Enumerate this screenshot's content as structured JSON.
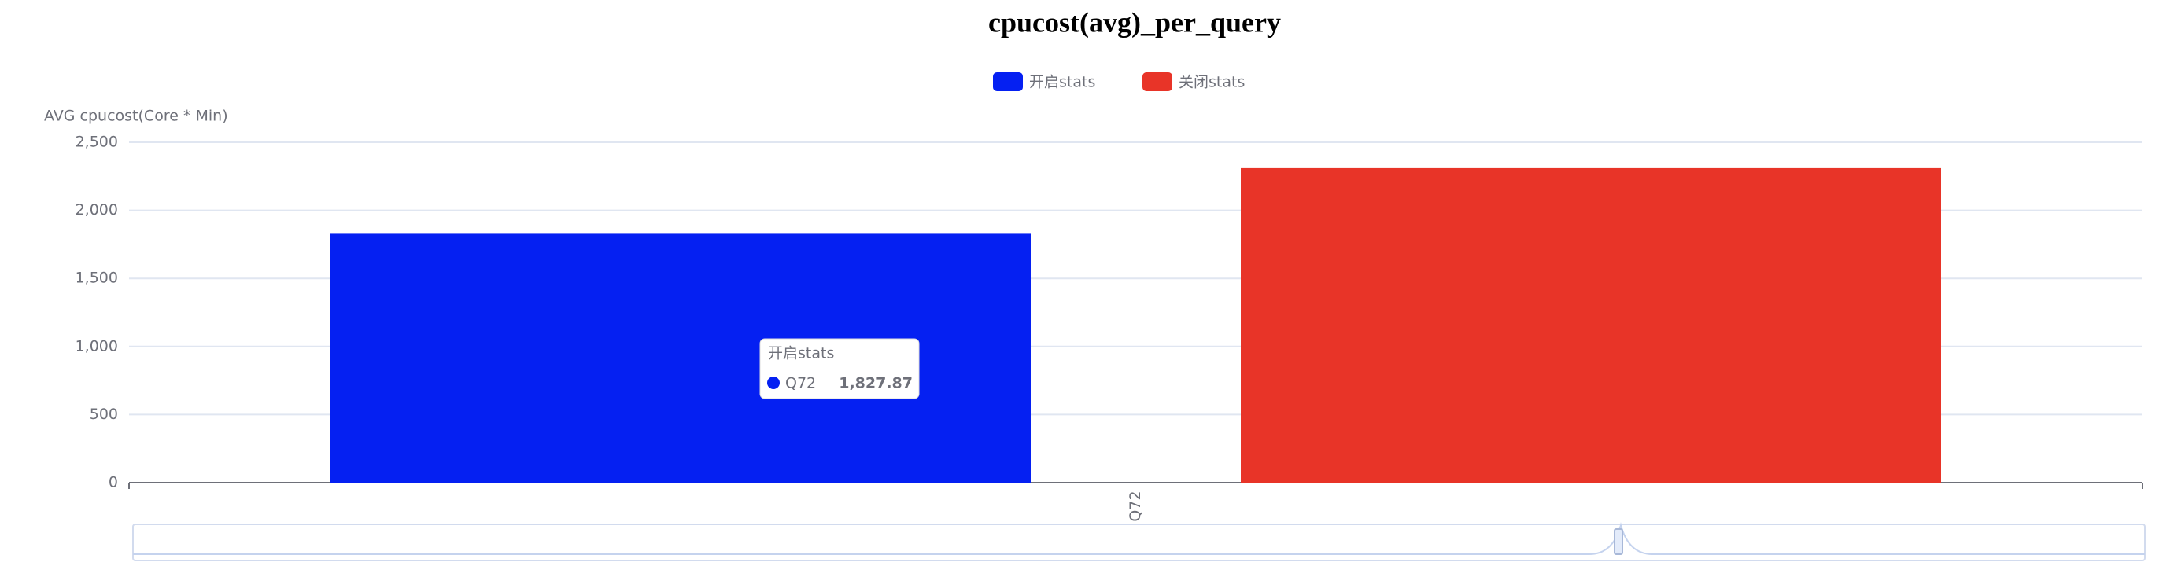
{
  "chart_data": {
    "type": "bar",
    "title": "cpucost(avg)_per_query",
    "y_label": "AVG cpucost(Core * Min)",
    "categories": [
      "Q72"
    ],
    "series": [
      {
        "name": "开启stats",
        "color": "#0520f2",
        "values": [
          1827.87
        ],
        "value_labels": [
          "1,827.87"
        ]
      },
      {
        "name": "关闭stats",
        "color": "#e83428",
        "values": [
          2310
        ]
      }
    ],
    "ylim": [
      0,
      2500
    ],
    "yticks": [
      0,
      500,
      {
        "value": 1000,
        "label": "1,000"
      },
      {
        "value": 1500,
        "label": "1,500"
      },
      {
        "value": 2000,
        "label": "2,000"
      },
      {
        "value": 2500,
        "label": "2,500"
      }
    ],
    "grid": true,
    "legend": "top"
  }
}
